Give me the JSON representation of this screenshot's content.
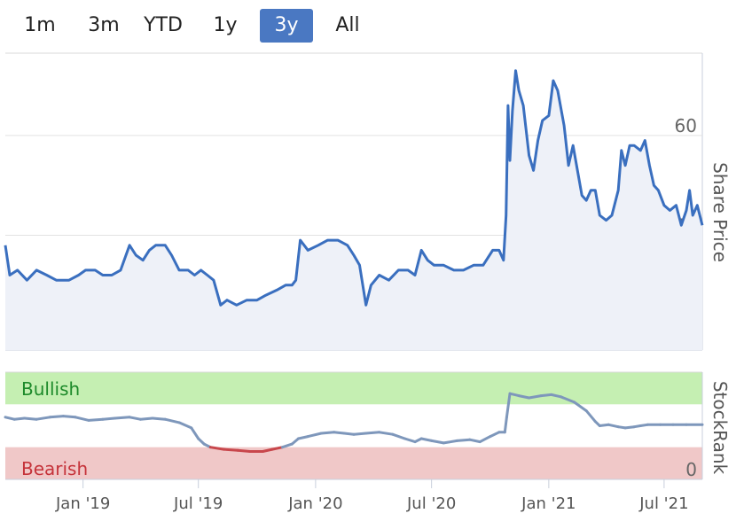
{
  "range_buttons": [
    {
      "label": "1m"
    },
    {
      "label": "3m"
    },
    {
      "label": "YTD"
    },
    {
      "label": "1y"
    },
    {
      "label": "3y",
      "active": true
    },
    {
      "label": "All"
    }
  ],
  "colors": {
    "price_line": "#3a6fbf",
    "price_fill": "#eef1f8",
    "rank_line": "#7e97bb",
    "rank_bear_line": "#c8474c",
    "bull_band": "#c5efb2",
    "bear_band": "#f0c8c8",
    "bull_text": "#1d8a2a",
    "bear_text": "#c5333a",
    "active_button": "#4a78c2"
  },
  "chart_data": [
    {
      "type": "area",
      "ylabel": "Share Price",
      "ylim": [
        17,
        76.5
      ],
      "yticks": [
        20,
        40,
        60
      ],
      "grid": true,
      "series": [
        {
          "values": [
            [
              "2018-09-01",
              38
            ],
            [
              "2018-09-08",
              32
            ],
            [
              "2018-09-20",
              33
            ],
            [
              "2018-10-05",
              31
            ],
            [
              "2018-10-20",
              33
            ],
            [
              "2018-11-05",
              32
            ],
            [
              "2018-11-20",
              31
            ],
            [
              "2018-12-10",
              31
            ],
            [
              "2018-12-25",
              32
            ],
            [
              "2019-01-05",
              33
            ],
            [
              "2019-01-20",
              33
            ],
            [
              "2019-02-01",
              32
            ],
            [
              "2019-02-15",
              32
            ],
            [
              "2019-03-01",
              33
            ],
            [
              "2019-03-15",
              38
            ],
            [
              "2019-03-25",
              36
            ],
            [
              "2019-04-05",
              35
            ],
            [
              "2019-04-15",
              37
            ],
            [
              "2019-04-25",
              38
            ],
            [
              "2019-05-10",
              38
            ],
            [
              "2019-05-20",
              36
            ],
            [
              "2019-06-01",
              33
            ],
            [
              "2019-06-15",
              33
            ],
            [
              "2019-06-25",
              32
            ],
            [
              "2019-07-05",
              33
            ],
            [
              "2019-07-15",
              32
            ],
            [
              "2019-07-25",
              31
            ],
            [
              "2019-08-05",
              26
            ],
            [
              "2019-08-15",
              27
            ],
            [
              "2019-08-30",
              26
            ],
            [
              "2019-09-15",
              27
            ],
            [
              "2019-10-01",
              27
            ],
            [
              "2019-10-15",
              28
            ],
            [
              "2019-11-01",
              29
            ],
            [
              "2019-11-15",
              30
            ],
            [
              "2019-11-25",
              30
            ],
            [
              "2019-12-01",
              31
            ],
            [
              "2019-12-08",
              39
            ],
            [
              "2019-12-20",
              37
            ],
            [
              "2020-01-05",
              38
            ],
            [
              "2020-01-20",
              39
            ],
            [
              "2020-02-05",
              39
            ],
            [
              "2020-02-20",
              38
            ],
            [
              "2020-03-01",
              36
            ],
            [
              "2020-03-10",
              34
            ],
            [
              "2020-03-20",
              26
            ],
            [
              "2020-03-28",
              30
            ],
            [
              "2020-04-10",
              32
            ],
            [
              "2020-04-25",
              31
            ],
            [
              "2020-05-10",
              33
            ],
            [
              "2020-05-25",
              33
            ],
            [
              "2020-06-05",
              32
            ],
            [
              "2020-06-15",
              37
            ],
            [
              "2020-06-25",
              35
            ],
            [
              "2020-07-05",
              34
            ],
            [
              "2020-07-20",
              34
            ],
            [
              "2020-08-05",
              33
            ],
            [
              "2020-08-20",
              33
            ],
            [
              "2020-09-05",
              34
            ],
            [
              "2020-09-20",
              34
            ],
            [
              "2020-10-05",
              37
            ],
            [
              "2020-10-15",
              37
            ],
            [
              "2020-10-22",
              35
            ],
            [
              "2020-10-26",
              44
            ],
            [
              "2020-10-29",
              66
            ],
            [
              "2020-11-01",
              55
            ],
            [
              "2020-11-05",
              65
            ],
            [
              "2020-11-10",
              73
            ],
            [
              "2020-11-15",
              69
            ],
            [
              "2020-11-22",
              66
            ],
            [
              "2020-12-01",
              56
            ],
            [
              "2020-12-08",
              53
            ],
            [
              "2020-12-15",
              59
            ],
            [
              "2020-12-22",
              63
            ],
            [
              "2021-01-01",
              64
            ],
            [
              "2021-01-08",
              71
            ],
            [
              "2021-01-15",
              69
            ],
            [
              "2021-01-25",
              62
            ],
            [
              "2021-02-01",
              54
            ],
            [
              "2021-02-08",
              58
            ],
            [
              "2021-02-15",
              53
            ],
            [
              "2021-02-22",
              48
            ],
            [
              "2021-03-01",
              47
            ],
            [
              "2021-03-08",
              49
            ],
            [
              "2021-03-15",
              49
            ],
            [
              "2021-03-22",
              44
            ],
            [
              "2021-04-01",
              43
            ],
            [
              "2021-04-10",
              44
            ],
            [
              "2021-04-20",
              49
            ],
            [
              "2021-04-25",
              57
            ],
            [
              "2021-05-01",
              54
            ],
            [
              "2021-05-08",
              58
            ],
            [
              "2021-05-15",
              58
            ],
            [
              "2021-05-25",
              57
            ],
            [
              "2021-06-01",
              59
            ],
            [
              "2021-06-08",
              54
            ],
            [
              "2021-06-15",
              50
            ],
            [
              "2021-06-22",
              49
            ],
            [
              "2021-07-01",
              46
            ],
            [
              "2021-07-10",
              45
            ],
            [
              "2021-07-20",
              46
            ],
            [
              "2021-07-28",
              42
            ],
            [
              "2021-08-05",
              45
            ],
            [
              "2021-08-10",
              49
            ],
            [
              "2021-08-15",
              44
            ],
            [
              "2021-08-22",
              46
            ],
            [
              "2021-08-30",
              42
            ]
          ]
        }
      ]
    },
    {
      "type": "line",
      "ylabel": "StockRank",
      "ylim": [
        0,
        100
      ],
      "yticks": [
        0
      ],
      "bands": {
        "bullish": [
          70,
          100
        ],
        "bearish": [
          0,
          30
        ]
      },
      "band_labels": {
        "bullish": "Bullish",
        "bearish": "Bearish"
      },
      "series": [
        {
          "values": [
            [
              "2018-09-01",
              58
            ],
            [
              "2018-09-15",
              56
            ],
            [
              "2018-10-01",
              57
            ],
            [
              "2018-10-20",
              56
            ],
            [
              "2018-11-10",
              58
            ],
            [
              "2018-12-01",
              59
            ],
            [
              "2018-12-20",
              58
            ],
            [
              "2019-01-10",
              55
            ],
            [
              "2019-02-01",
              56
            ],
            [
              "2019-02-20",
              57
            ],
            [
              "2019-03-15",
              58
            ],
            [
              "2019-04-01",
              56
            ],
            [
              "2019-04-20",
              57
            ],
            [
              "2019-05-10",
              56
            ],
            [
              "2019-06-01",
              53
            ],
            [
              "2019-06-20",
              48
            ],
            [
              "2019-07-01",
              38
            ],
            [
              "2019-07-10",
              33
            ],
            [
              "2019-07-20",
              30
            ],
            [
              "2019-08-10",
              28
            ],
            [
              "2019-09-01",
              27
            ],
            [
              "2019-09-20",
              26
            ],
            [
              "2019-10-10",
              26
            ],
            [
              "2019-10-25",
              28
            ],
            [
              "2019-11-10",
              30
            ],
            [
              "2019-11-25",
              33
            ],
            [
              "2019-12-05",
              38
            ],
            [
              "2019-12-20",
              40
            ],
            [
              "2020-01-10",
              43
            ],
            [
              "2020-01-30",
              44
            ],
            [
              "2020-02-15",
              43
            ],
            [
              "2020-03-01",
              42
            ],
            [
              "2020-03-20",
              43
            ],
            [
              "2020-04-10",
              44
            ],
            [
              "2020-05-01",
              42
            ],
            [
              "2020-05-20",
              38
            ],
            [
              "2020-06-05",
              35
            ],
            [
              "2020-06-15",
              38
            ],
            [
              "2020-07-01",
              36
            ],
            [
              "2020-07-20",
              34
            ],
            [
              "2020-08-10",
              36
            ],
            [
              "2020-08-30",
              37
            ],
            [
              "2020-09-15",
              35
            ],
            [
              "2020-10-01",
              40
            ],
            [
              "2020-10-15",
              44
            ],
            [
              "2020-10-24",
              44
            ],
            [
              "2020-10-27",
              58
            ],
            [
              "2020-11-01",
              80
            ],
            [
              "2020-11-15",
              78
            ],
            [
              "2020-12-01",
              76
            ],
            [
              "2020-12-20",
              78
            ],
            [
              "2021-01-05",
              79
            ],
            [
              "2021-01-20",
              77
            ],
            [
              "2021-02-10",
              72
            ],
            [
              "2021-03-01",
              64
            ],
            [
              "2021-03-15",
              54
            ],
            [
              "2021-03-22",
              50
            ],
            [
              "2021-04-05",
              51
            ],
            [
              "2021-04-20",
              49
            ],
            [
              "2021-05-01",
              48
            ],
            [
              "2021-05-15",
              49
            ],
            [
              "2021-05-25",
              50
            ],
            [
              "2021-06-05",
              51
            ],
            [
              "2021-06-25",
              51
            ],
            [
              "2021-07-15",
              51
            ],
            [
              "2021-08-05",
              51
            ],
            [
              "2021-08-30",
              51
            ]
          ]
        }
      ]
    },
    {
      "type": "axis",
      "xlim": [
        "2018-09-01",
        "2021-08-30"
      ],
      "xticks": [
        {
          "date": "2019-01-01",
          "label": "Jan '19"
        },
        {
          "date": "2019-07-01",
          "label": "Jul '19"
        },
        {
          "date": "2020-01-01",
          "label": "Jan '20"
        },
        {
          "date": "2020-07-01",
          "label": "Jul '20"
        },
        {
          "date": "2021-01-01",
          "label": "Jan '21"
        },
        {
          "date": "2021-07-01",
          "label": "Jul '21"
        }
      ]
    }
  ]
}
